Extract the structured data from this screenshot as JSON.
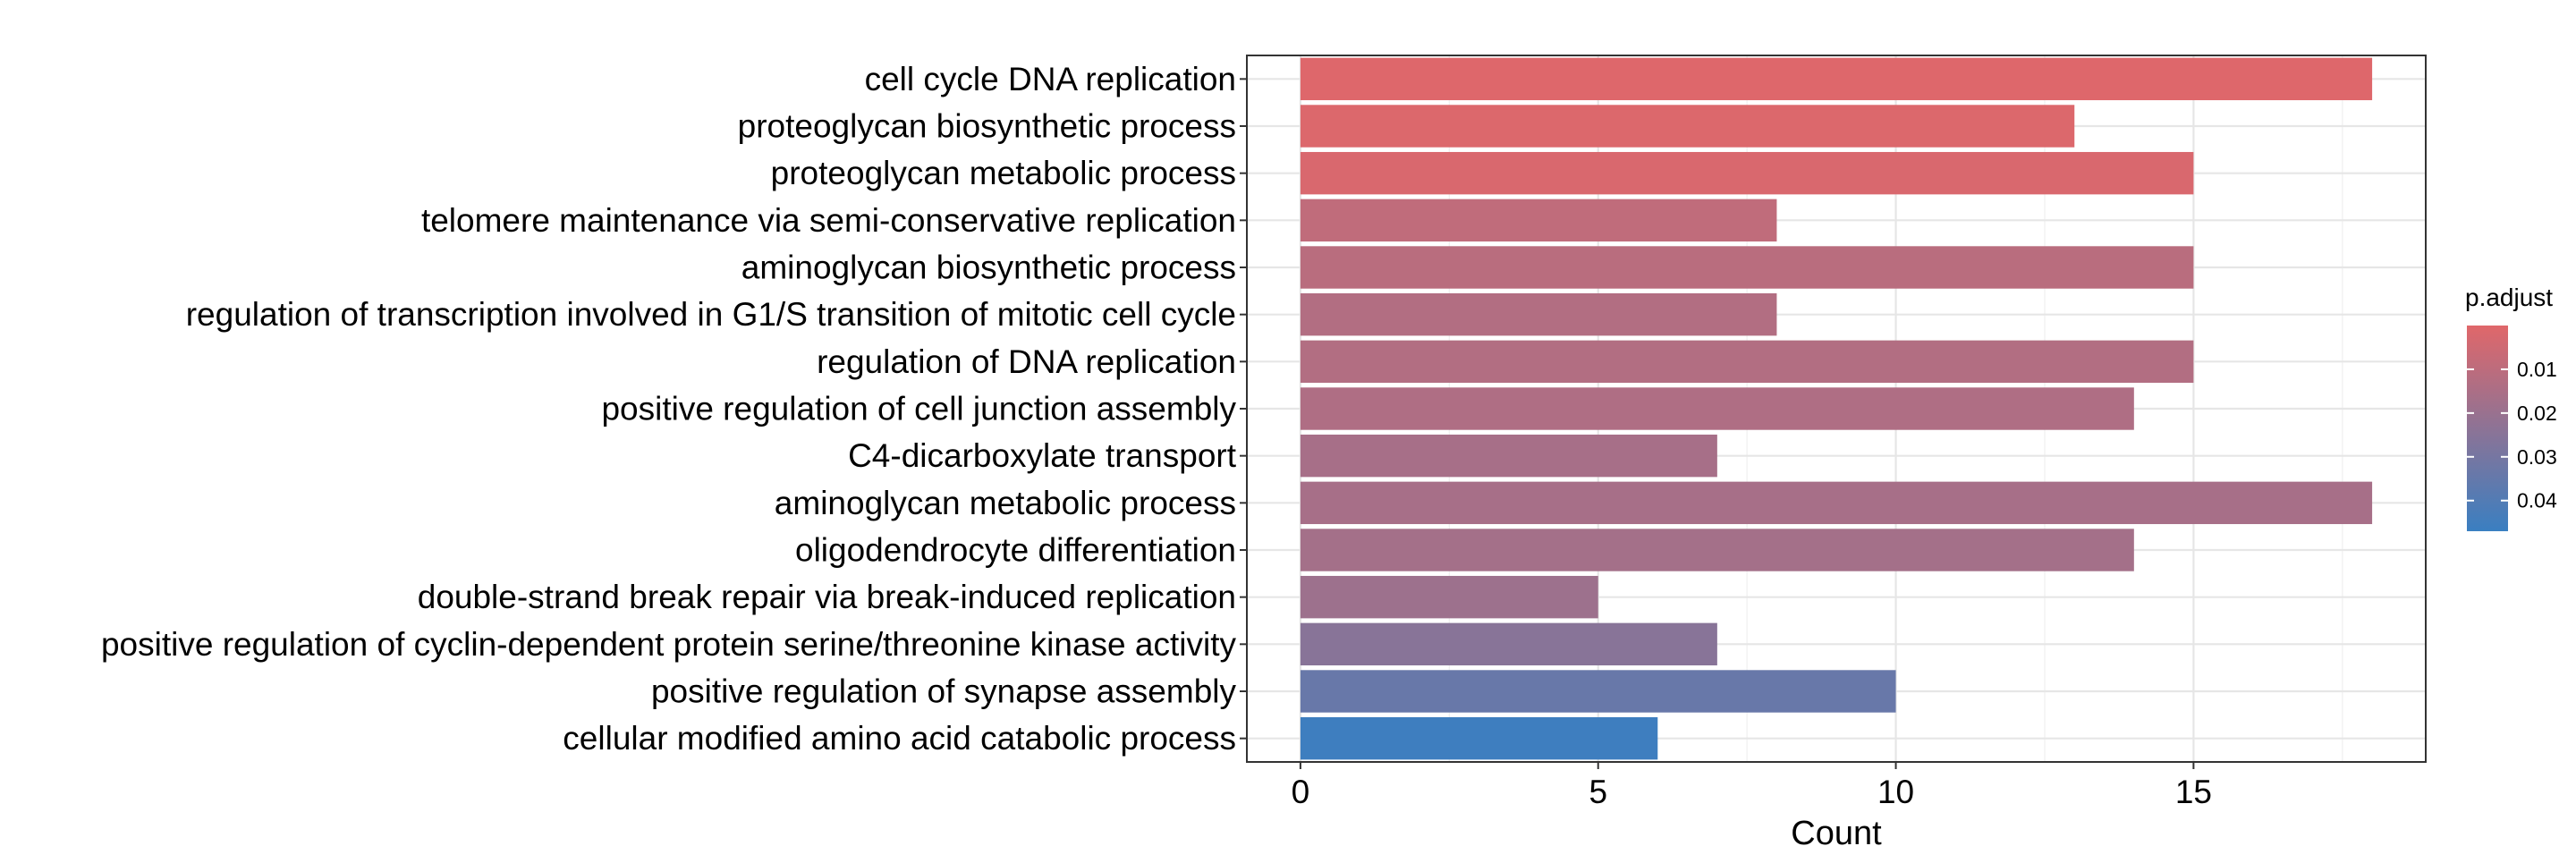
{
  "chart_data": {
    "type": "bar",
    "orientation": "horizontal",
    "xlabel": "Count",
    "ylabel": "",
    "title": "",
    "xlim": [
      -0.9,
      18.9
    ],
    "xticks": [
      0,
      5,
      10,
      15
    ],
    "grid": true,
    "categories": [
      "cell cycle DNA replication",
      "proteoglycan biosynthetic process",
      "proteoglycan metabolic process",
      "telomere maintenance via semi-conservative replication",
      "aminoglycan biosynthetic process",
      "regulation of transcription involved in G1/S transition of mitotic cell cycle",
      "regulation of DNA replication",
      "positive regulation of cell junction assembly",
      "C4-dicarboxylate transport",
      "aminoglycan metabolic process",
      "oligodendrocyte differentiation",
      "double-strand break repair via break-induced replication",
      "positive regulation of cyclin-dependent protein serine/threonine kinase activity",
      "positive regulation of synapse assembly",
      "cellular modified amino acid catabolic process"
    ],
    "values": [
      18,
      13,
      15,
      8,
      15,
      8,
      15,
      14,
      7,
      18,
      14,
      5,
      7,
      10,
      6
    ],
    "p_adjust": [
      0.0005,
      0.001,
      0.002,
      0.009,
      0.011,
      0.013,
      0.013,
      0.014,
      0.016,
      0.016,
      0.017,
      0.019,
      0.025,
      0.034,
      0.046
    ],
    "legend": {
      "title": "p.adjust",
      "position": "right",
      "ticks": [
        0.01,
        0.02,
        0.03,
        0.04
      ],
      "range": [
        0,
        0.047
      ],
      "low_color": "#e0676a",
      "high_color": "#3a7fc1"
    }
  }
}
